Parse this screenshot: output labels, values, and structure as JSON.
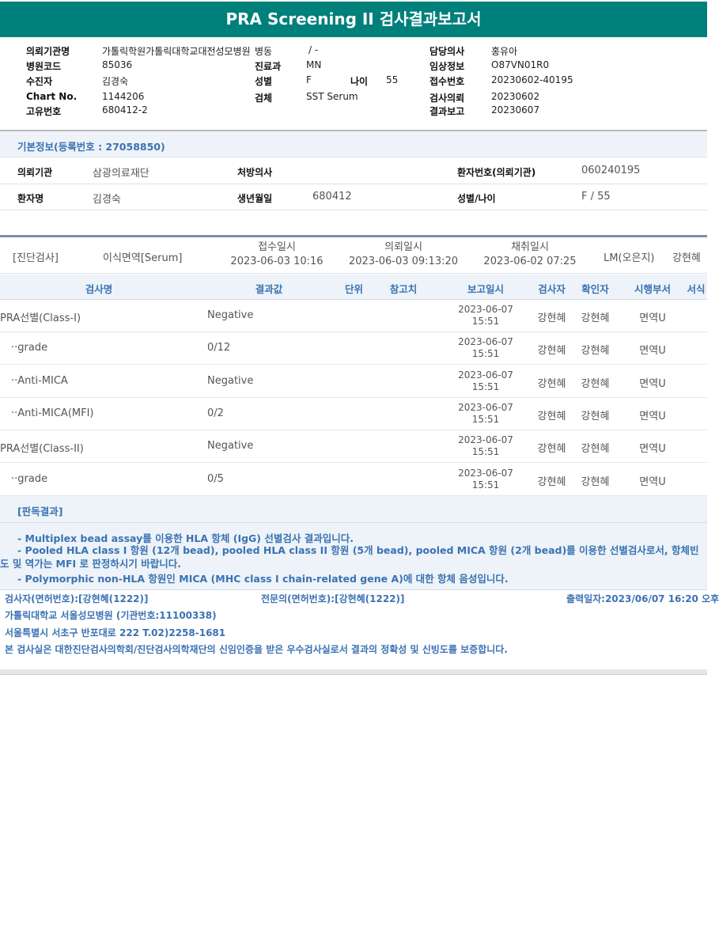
{
  "title": "PRA Screening II 검사결과보고서",
  "info": {
    "rows": [
      {
        "l1": "의뢰기관명",
        "v1": "가톨릭학원가톨릭대학교대전성모병원",
        "l2": "병동",
        "v2": "/ -",
        "l3": "담당의사",
        "v3": "홍유아"
      },
      {
        "l1": "병원코드",
        "v1": "85036",
        "l2": "진료과",
        "v2": "MN",
        "l3": "임상정보",
        "v3": "O87VN01R0"
      },
      {
        "l1": "수진자",
        "v1": "김경숙",
        "l2": "성별",
        "v2": "F",
        "l2b": "나이",
        "v2b": "55",
        "l3": "접수번호",
        "v3": "20230602-40195"
      },
      {
        "l1": "Chart No.",
        "v1": "1144206",
        "l2": "검체",
        "v2": "SST Serum",
        "l3": "검사의뢰",
        "v3": "20230602"
      },
      {
        "l1": "고유번호",
        "v1": "680412-2",
        "l3": "결과보고",
        "v3": "20230607"
      }
    ]
  },
  "basic": {
    "header": "기본정보(등록번호 : 27058850)",
    "rows": [
      {
        "l1": "의뢰기관",
        "v1": "삼광의료재단",
        "l2": "처방의사",
        "v2": "",
        "l3": "환자번호(의뢰기관)",
        "v3": "060240195"
      },
      {
        "l1": "환자명",
        "v1": "김경숙",
        "l2": "생년월일",
        "v2": "680412",
        "l3": "성별/나이",
        "v3": "F / 55"
      }
    ]
  },
  "order": {
    "category": "[진단검사]",
    "dept": "이식면역[Serum]",
    "received_label": "접수일시",
    "received": "2023-06-03 10:16",
    "requested_label": "의뢰일시",
    "requested": "2023-06-03 09:13:20",
    "collected_label": "채취일시",
    "collected": "2023-06-02 07:25",
    "lm": "LM(오은지)",
    "tech": "강현혜"
  },
  "table": {
    "headers": [
      "검사명",
      "결과값",
      "단위",
      "참고치",
      "보고일시",
      "검사자",
      "확인자",
      "시행부서",
      "서식"
    ],
    "rows": [
      {
        "name": "PRA선별(Class-I)",
        "result": "Negative",
        "unit": "",
        "ref": "",
        "date": "2023-06-07",
        "time": "15:51",
        "tester": "강현혜",
        "confirmer": "강현혜",
        "dept": "면역U"
      },
      {
        "name": "··grade",
        "result": "0/12",
        "unit": "",
        "ref": "",
        "date": "2023-06-07",
        "time": "15:51",
        "tester": "강현혜",
        "confirmer": "강현혜",
        "dept": "면역U"
      },
      {
        "name": "··Anti-MICA",
        "result": "Negative",
        "unit": "",
        "ref": "",
        "date": "2023-06-07",
        "time": "15:51",
        "tester": "강현혜",
        "confirmer": "강현혜",
        "dept": "면역U"
      },
      {
        "name": "··Anti-MICA(MFI)",
        "result": "0/2",
        "unit": "",
        "ref": "",
        "date": "2023-06-07",
        "time": "15:51",
        "tester": "강현혜",
        "confirmer": "강현혜",
        "dept": "면역U"
      },
      {
        "name": "PRA선별(Class-II)",
        "result": "Negative",
        "unit": "",
        "ref": "",
        "date": "2023-06-07",
        "time": "15:51",
        "tester": "강현혜",
        "confirmer": "강현혜",
        "dept": "면역U"
      },
      {
        "name": "··grade",
        "result": "0/5",
        "unit": "",
        "ref": "",
        "date": "2023-06-07",
        "time": "15:51",
        "tester": "강현혜",
        "confirmer": "강현혜",
        "dept": "면역U"
      }
    ]
  },
  "verdict": {
    "header": "[판독결과]",
    "lines": [
      "- Multiplex bead assay를 이용한 HLA 항체 (IgG) 선별검사 결과입니다.",
      "- Pooled HLA class I 항원 (12개 bead), pooled HLA class II 항원 (5개 bead), pooled MICA 항원 (2개 bead)를 이용한 선별검사로서, 항체빈도 및 역가는 MFI 로 판정하시기 바랍니다.",
      "- Polymorphic non-HLA 항원인 MICA (MHC class I chain-related gene A)에 대한 항체 음성입니다."
    ]
  },
  "footer": {
    "tester": "검사자(면허번호):[강현혜(1222)]",
    "specialist": "전문의(면허번호):[강현혜(1222)]",
    "printed": "출력일자:2023/06/07 16:20 오후",
    "hospital": "가톨릭대학교 서울성모병원 (기관번호:11100338)",
    "address": "서울특별시 서초구 반포대로 222 T.02)2258-1681",
    "cert": "본 검사실은 대한진단검사의학회/진단검사의학재단의 신임인증을 받은 우수검사실로서 결과의 정확성 및 신빙도를 보증합니다."
  }
}
